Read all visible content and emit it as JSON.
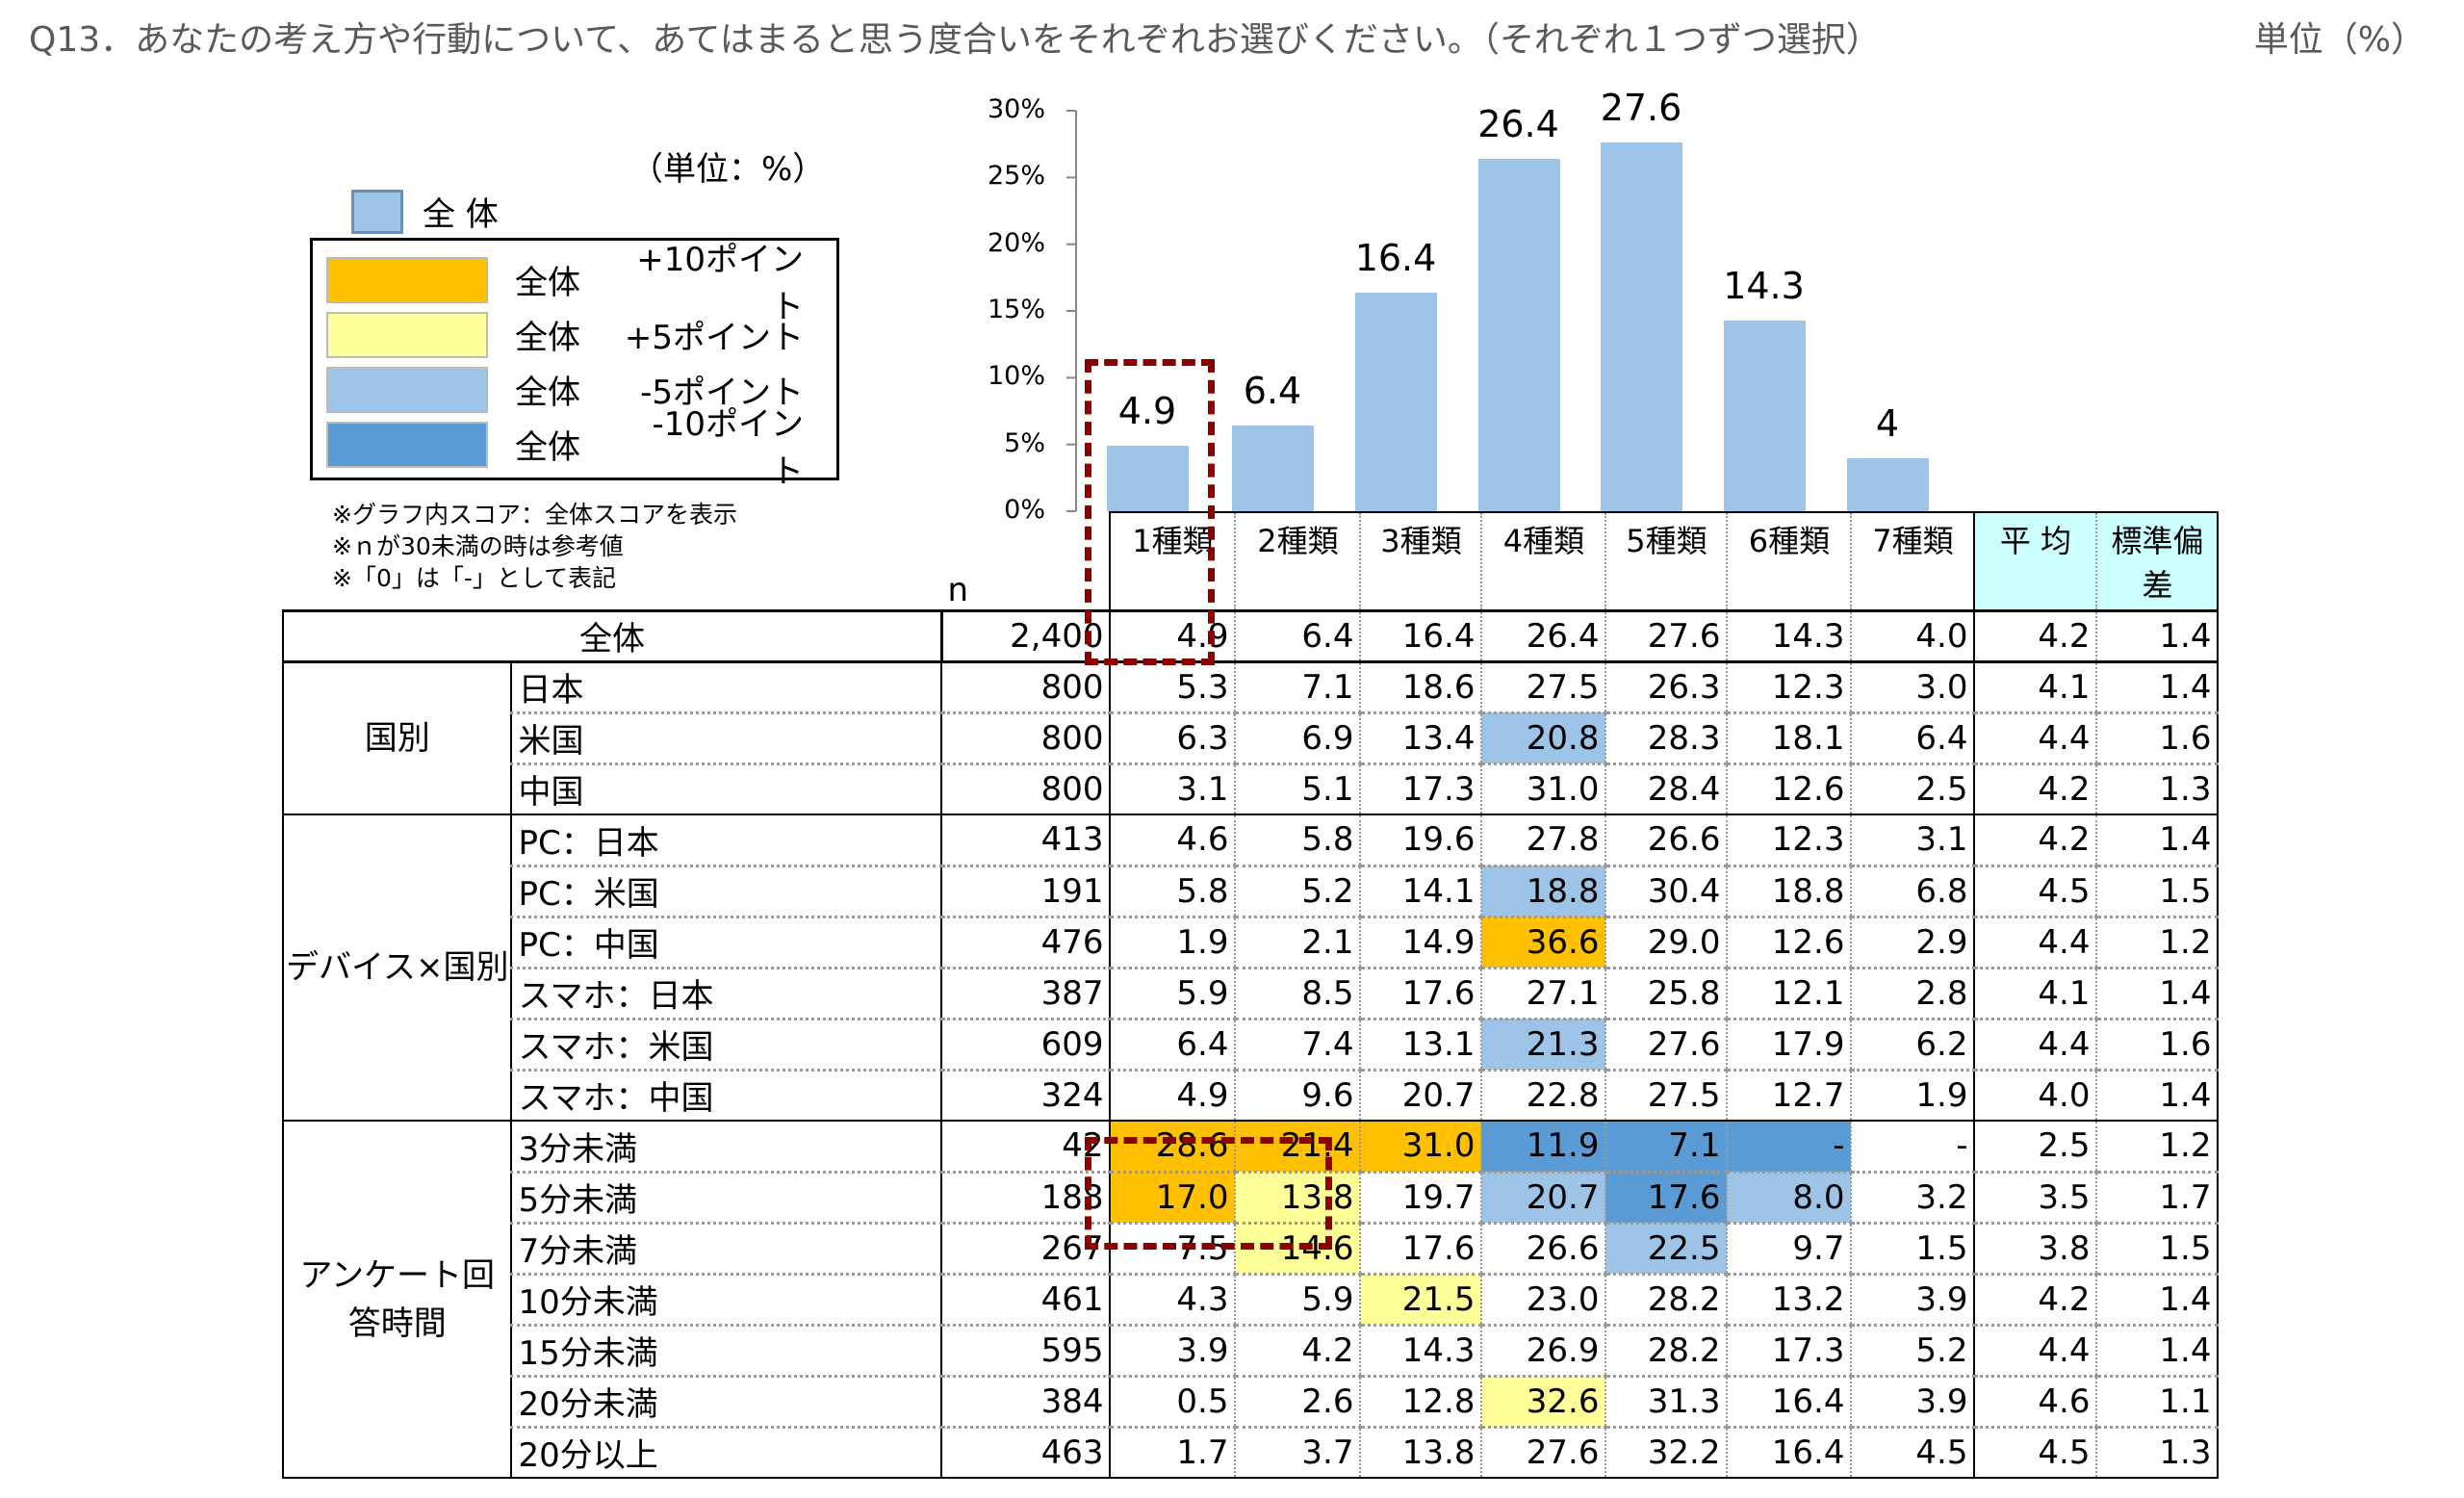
{
  "header": {
    "title": "Q13．あなたの考え方や行動について、あてはまると思う度合いをそれぞれお選びください。（それぞれ１つずつ選択）",
    "unit": "単位（%）"
  },
  "legend": {
    "unit": "（単位：%）",
    "series_label": "全 体",
    "items": [
      {
        "label": "全体",
        "delta": "+10ポイント",
        "color": "#ffc000"
      },
      {
        "label": "全体",
        "delta": "+5ポイント",
        "color": "#ffff99"
      },
      {
        "label": "全体",
        "delta": "-5ポイント",
        "color": "#9dc3e6"
      },
      {
        "label": "全体",
        "delta": "-10ポイント",
        "color": "#5b9bd5"
      }
    ],
    "notes": [
      "※グラフ内スコア：全体スコアを表示",
      "※ｎが30未満の時は参考値",
      "※「0」は「-」として表記"
    ]
  },
  "chart_data": {
    "type": "bar",
    "title": "",
    "categories": [
      "1種類",
      "2種類",
      "3種類",
      "4種類",
      "5種類",
      "6種類",
      "7種類"
    ],
    "series": [
      {
        "name": "全体",
        "values": [
          4.9,
          6.4,
          16.4,
          26.4,
          27.6,
          14.3,
          4.0
        ],
        "color": "#9dc3e6"
      }
    ],
    "yticks": [
      "0%",
      "5%",
      "10%",
      "15%",
      "20%",
      "25%",
      "30%"
    ],
    "ylim": [
      0,
      30
    ],
    "xlabel": "",
    "ylabel": "",
    "grid": false,
    "legend_position": "left"
  },
  "table": {
    "n_label": "n",
    "columns": [
      "1種類",
      "2種類",
      "3種類",
      "4種類",
      "5種類",
      "6種類",
      "7種類",
      "平 均",
      "標準偏差"
    ],
    "total": {
      "label": "全体",
      "n": "2,400",
      "values": [
        "4.9",
        "6.4",
        "16.4",
        "26.4",
        "27.6",
        "14.3",
        "4.0",
        "4.2",
        "1.4"
      ]
    },
    "groups": [
      {
        "label": "国別",
        "rows": [
          {
            "label": "日本",
            "n": "800",
            "values": [
              "5.3",
              "7.1",
              "18.6",
              "27.5",
              "26.3",
              "12.3",
              "3.0",
              "4.1",
              "1.4"
            ],
            "hl": [
              "",
              "",
              "",
              "",
              "",
              "",
              "",
              "",
              ""
            ]
          },
          {
            "label": "米国",
            "n": "800",
            "values": [
              "6.3",
              "6.9",
              "13.4",
              "20.8",
              "28.3",
              "18.1",
              "6.4",
              "4.4",
              "1.6"
            ],
            "hl": [
              "",
              "",
              "",
              "m5",
              "",
              "",
              "",
              "",
              ""
            ]
          },
          {
            "label": "中国",
            "n": "800",
            "values": [
              "3.1",
              "5.1",
              "17.3",
              "31.0",
              "28.4",
              "12.6",
              "2.5",
              "4.2",
              "1.3"
            ],
            "hl": [
              "",
              "",
              "",
              "",
              "",
              "",
              "",
              "",
              ""
            ]
          }
        ]
      },
      {
        "label": "デバイス×国別",
        "rows": [
          {
            "label": "PC：日本",
            "n": "413",
            "values": [
              "4.6",
              "5.8",
              "19.6",
              "27.8",
              "26.6",
              "12.3",
              "3.1",
              "4.2",
              "1.4"
            ],
            "hl": [
              "",
              "",
              "",
              "",
              "",
              "",
              "",
              "",
              ""
            ]
          },
          {
            "label": "PC：米国",
            "n": "191",
            "values": [
              "5.8",
              "5.2",
              "14.1",
              "18.8",
              "30.4",
              "18.8",
              "6.8",
              "4.5",
              "1.5"
            ],
            "hl": [
              "",
              "",
              "",
              "m5",
              "",
              "",
              "",
              "",
              ""
            ]
          },
          {
            "label": "PC：中国",
            "n": "476",
            "values": [
              "1.9",
              "2.1",
              "14.9",
              "36.6",
              "29.0",
              "12.6",
              "2.9",
              "4.4",
              "1.2"
            ],
            "hl": [
              "",
              "",
              "",
              "p10",
              "",
              "",
              "",
              "",
              ""
            ]
          },
          {
            "label": "スマホ：日本",
            "n": "387",
            "values": [
              "5.9",
              "8.5",
              "17.6",
              "27.1",
              "25.8",
              "12.1",
              "2.8",
              "4.1",
              "1.4"
            ],
            "hl": [
              "",
              "",
              "",
              "",
              "",
              "",
              "",
              "",
              ""
            ]
          },
          {
            "label": "スマホ：米国",
            "n": "609",
            "values": [
              "6.4",
              "7.4",
              "13.1",
              "21.3",
              "27.6",
              "17.9",
              "6.2",
              "4.4",
              "1.6"
            ],
            "hl": [
              "",
              "",
              "",
              "m5",
              "",
              "",
              "",
              "",
              ""
            ]
          },
          {
            "label": "スマホ：中国",
            "n": "324",
            "values": [
              "4.9",
              "9.6",
              "20.7",
              "22.8",
              "27.5",
              "12.7",
              "1.9",
              "4.0",
              "1.4"
            ],
            "hl": [
              "",
              "",
              "",
              "",
              "",
              "",
              "",
              "",
              ""
            ]
          }
        ]
      },
      {
        "label": "アンケート回答時間",
        "rows": [
          {
            "label": "3分未満",
            "n": "42",
            "values": [
              "28.6",
              "21.4",
              "31.0",
              "11.9",
              "7.1",
              "-",
              "-",
              "2.5",
              "1.2"
            ],
            "hl": [
              "p10",
              "p10",
              "p10",
              "m10",
              "m10",
              "m10",
              "",
              "",
              ""
            ]
          },
          {
            "label": "5分未満",
            "n": "188",
            "values": [
              "17.0",
              "13.8",
              "19.7",
              "20.7",
              "17.6",
              "8.0",
              "3.2",
              "3.5",
              "1.7"
            ],
            "hl": [
              "p10",
              "p5",
              "",
              "m5",
              "m10",
              "m5",
              "",
              "",
              ""
            ]
          },
          {
            "label": "7分未満",
            "n": "267",
            "values": [
              "7.5",
              "14.6",
              "17.6",
              "26.6",
              "22.5",
              "9.7",
              "1.5",
              "3.8",
              "1.5"
            ],
            "hl": [
              "",
              "p5",
              "",
              "",
              "m5",
              "",
              "",
              "",
              ""
            ]
          },
          {
            "label": "10分未満",
            "n": "461",
            "values": [
              "4.3",
              "5.9",
              "21.5",
              "23.0",
              "28.2",
              "13.2",
              "3.9",
              "4.2",
              "1.4"
            ],
            "hl": [
              "",
              "",
              "p5",
              "",
              "",
              "",
              "",
              "",
              ""
            ]
          },
          {
            "label": "15分未満",
            "n": "595",
            "values": [
              "3.9",
              "4.2",
              "14.3",
              "26.9",
              "28.2",
              "17.3",
              "5.2",
              "4.4",
              "1.4"
            ],
            "hl": [
              "",
              "",
              "",
              "",
              "",
              "",
              "",
              "",
              ""
            ]
          },
          {
            "label": "20分未満",
            "n": "384",
            "values": [
              "0.5",
              "2.6",
              "12.8",
              "32.6",
              "31.3",
              "16.4",
              "3.9",
              "4.6",
              "1.1"
            ],
            "hl": [
              "",
              "",
              "",
              "p5",
              "",
              "",
              "",
              "",
              ""
            ]
          },
          {
            "label": "20分以上",
            "n": "463",
            "values": [
              "1.7",
              "3.7",
              "13.8",
              "27.6",
              "32.2",
              "16.4",
              "4.5",
              "4.5",
              "1.3"
            ],
            "hl": [
              "",
              "",
              "",
              "",
              "",
              "",
              "",
              "",
              ""
            ]
          }
        ]
      }
    ]
  }
}
